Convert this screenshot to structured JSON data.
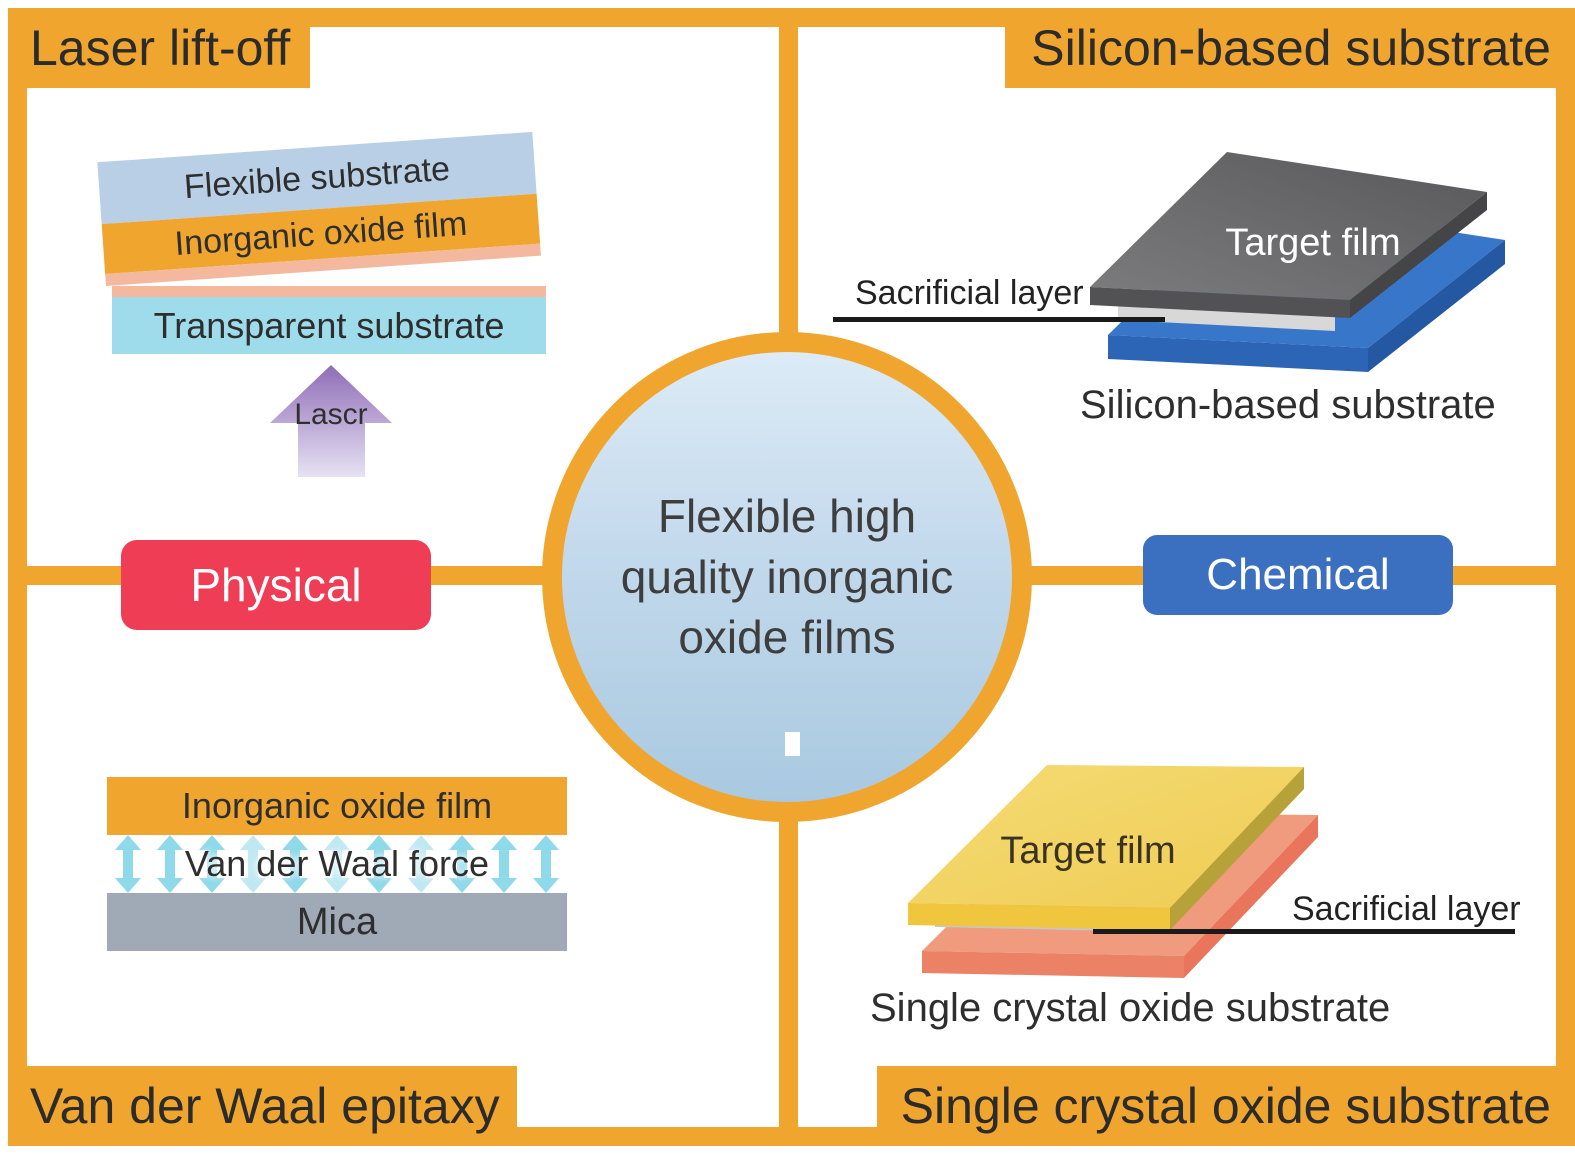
{
  "colors": {
    "orange": "#F0A62E",
    "red": "#EE3D55",
    "blue": "#3B70C1",
    "light_blue": "#B9CFE6",
    "cyan_sub": "#9EDCEC",
    "salmon_strip": "#F3B89E",
    "mica": "#A0A9B6",
    "arrow_cyan": "#8ED9EA",
    "arrow_light": "#BFE9F2"
  },
  "banners": {
    "tl": "Laser lift-off",
    "tr": "Silicon-based substrate",
    "bl": "Van der Waal epitaxy",
    "br": "Single crystal oxide substrate"
  },
  "center": {
    "text": "Flexible high\nquality inorganic\noxide films"
  },
  "buttons": {
    "physical": "Physical",
    "chemical": "Chemical"
  },
  "laser_panel": {
    "flexible_substrate": "Flexible substrate",
    "inorganic_oxide_film": "Inorganic oxide film",
    "transparent_substrate": "Transparent substrate",
    "arrow_label": "Lascr"
  },
  "vdw_panel": {
    "inorganic_oxide_film": "Inorganic oxide film",
    "force_label": "Van der Waal force",
    "mica": "Mica",
    "arrow_count": 11,
    "light_arrow_indexes": [
      3,
      5,
      7
    ]
  },
  "silicon_panel": {
    "target_film": "Target film",
    "sacrificial_label": "Sacrificial layer",
    "caption": "Silicon-based substrate"
  },
  "crystal_panel": {
    "target_film": "Target film",
    "sacrificial_label": "Sacrificial layer",
    "caption": "Single crystal oxide substrate"
  }
}
